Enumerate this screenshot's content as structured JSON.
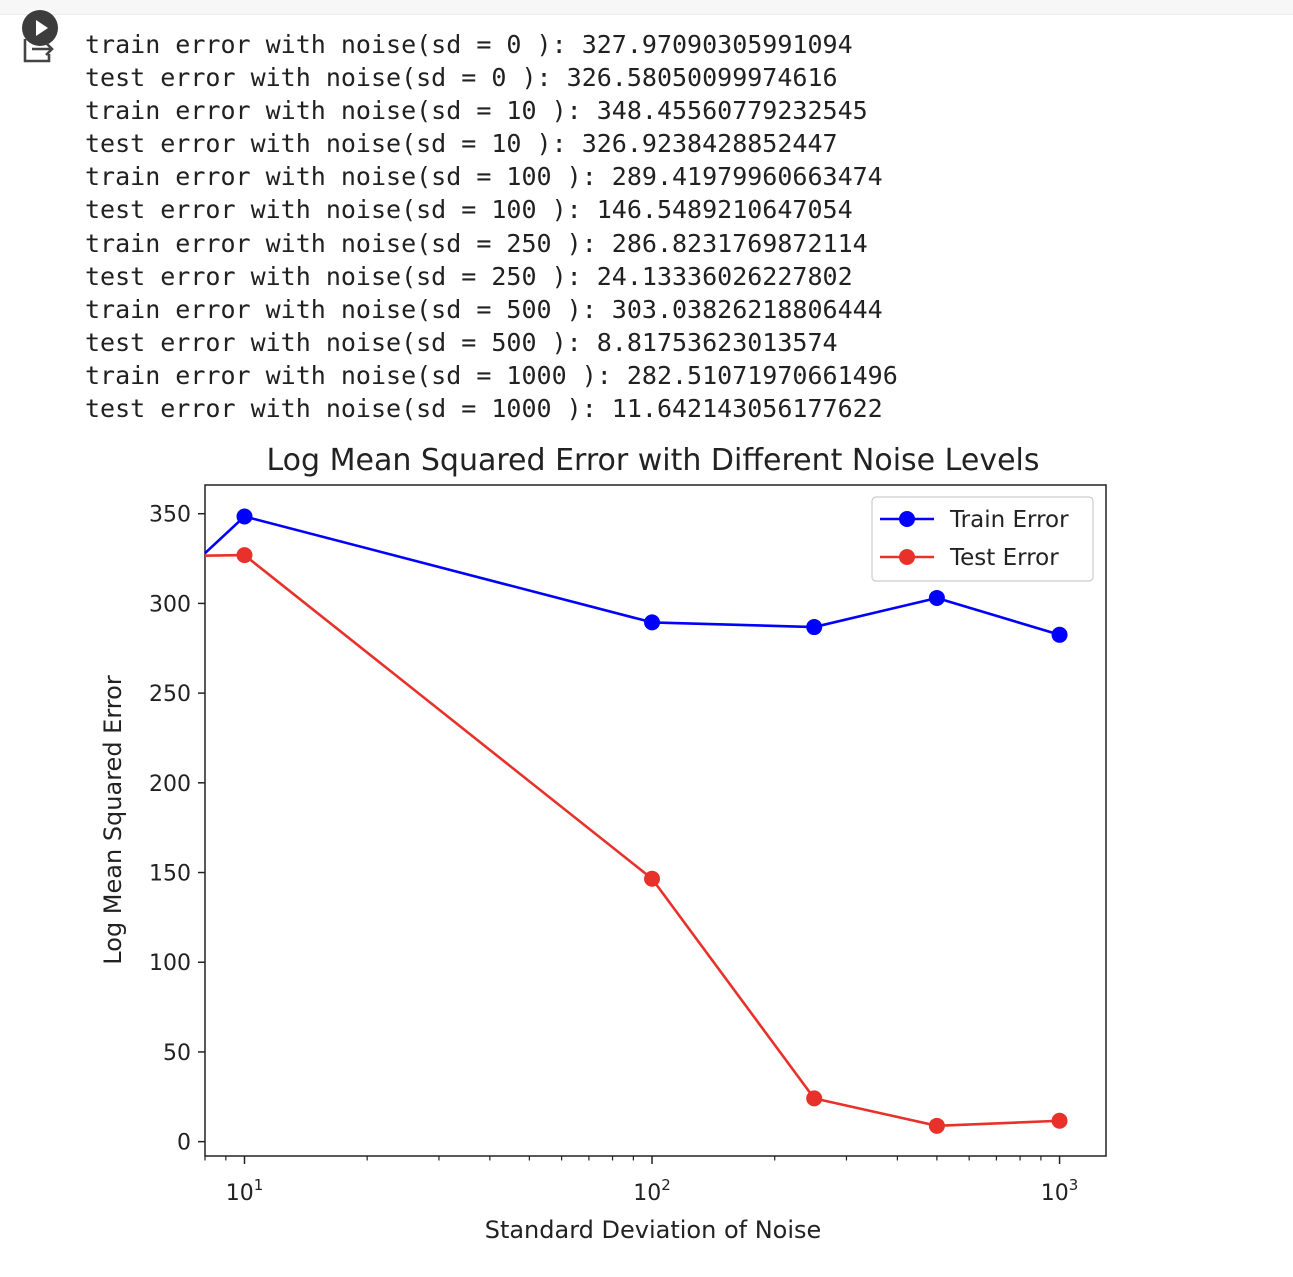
{
  "output_lines": [
    "train error with noise(sd = 0 ): 327.97090305991094",
    "test error with noise(sd = 0 ): 326.58050099974616",
    "train error with noise(sd = 10 ): 348.45560779232545",
    "test error with noise(sd = 10 ): 326.9238428852447",
    "train error with noise(sd = 100 ): 289.41979960663474",
    "test error with noise(sd = 100 ): 146.5489210647054",
    "train error with noise(sd = 250 ): 286.8231769872114",
    "test error with noise(sd = 250 ): 24.13336026227802",
    "train error with noise(sd = 500 ): 303.03826218806444",
    "test error with noise(sd = 500 ): 8.81753623013574",
    "train error with noise(sd = 1000 ): 282.51071970661496",
    "test error with noise(sd = 1000 ): 11.642143056177622"
  ],
  "icons": {
    "run": "play-circle-icon",
    "output": "output-arrow-icon"
  },
  "chart_data": {
    "type": "line",
    "title": "Log Mean Squared Error with Different Noise Levels",
    "xlabel": "Standard Deviation of Noise",
    "ylabel": "Log Mean Squared Error",
    "xscale": "log",
    "xlim": [
      8,
      1300
    ],
    "ylim": [
      -8,
      366
    ],
    "x": [
      0,
      10,
      100,
      250,
      500,
      1000
    ],
    "yticks": [
      0,
      50,
      100,
      150,
      200,
      250,
      300,
      350
    ],
    "xticks": [
      {
        "value": 10,
        "base": "10",
        "exp": "1"
      },
      {
        "value": 100,
        "base": "10",
        "exp": "2"
      },
      {
        "value": 1000,
        "base": "10",
        "exp": "3"
      }
    ],
    "grid": false,
    "legend": "top-right",
    "series": [
      {
        "name": "Train Error",
        "color": "#0000ff",
        "values": [
          327.97090305991094,
          348.45560779232545,
          289.41979960663474,
          286.8231769872114,
          303.03826218806444,
          282.51071970661496
        ]
      },
      {
        "name": "Test Error",
        "color": "#e8312a",
        "values": [
          326.58050099974616,
          326.9238428852447,
          146.5489210647054,
          24.13336026227802,
          8.81753623013574,
          11.642143056177622
        ]
      }
    ]
  }
}
